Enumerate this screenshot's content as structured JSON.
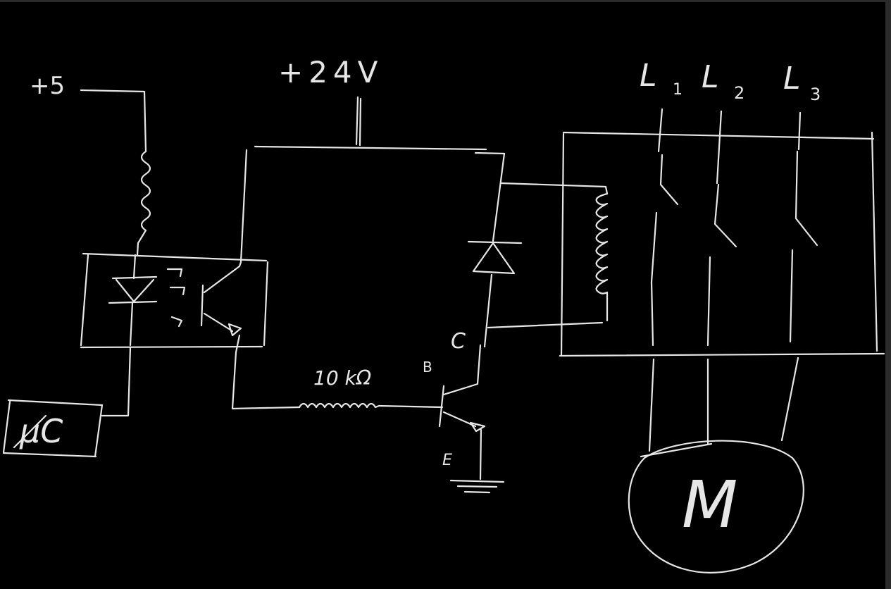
{
  "canvas": {
    "background": "#000000",
    "ink_color": "#e6e6e6",
    "frame_color": "#2b2b2b"
  },
  "labels": {
    "supply_5v": "+5",
    "supply_24v": "+24V",
    "phase_l1": "L",
    "phase_l1_sub": "1",
    "phase_l2": "L",
    "phase_l2_sub": "2",
    "phase_l3": "L",
    "phase_l3_sub": "3",
    "resistor_value": "10 kΩ",
    "pin_base": "B",
    "pin_collector": "C",
    "pin_emitter": "E",
    "microcontroller": "µC",
    "motor": "M"
  }
}
